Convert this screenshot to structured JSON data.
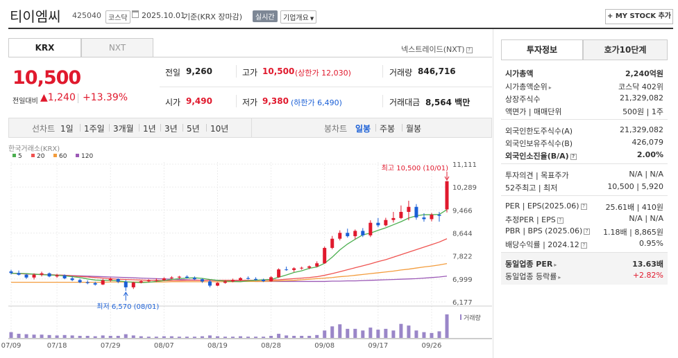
{
  "header": {
    "company_name": "티이엠씨",
    "code": "425040",
    "market_badge": "코스닥",
    "date": "2025.10.01",
    "basis": "기준(KRX 장마감)",
    "realtime_badge": "실시간",
    "overview_button": "기업개요",
    "mystock_button": "MY STOCK 추가"
  },
  "exchange_tabs": [
    "KRX",
    "NXT"
  ],
  "nxt_link": "넥스트레이드(NXT)",
  "price": {
    "current": "10,500",
    "change_label": "전일대비",
    "change": "1,240",
    "change_pct": "+13.39%"
  },
  "quote": {
    "prev_close_label": "전일",
    "prev_close": "9,260",
    "high_label": "고가",
    "high": "10,500",
    "upper_limit": "(상한가 12,030)",
    "volume_label": "거래량",
    "volume": "846,716",
    "open_label": "시가",
    "open": "9,490",
    "low_label": "저가",
    "low": "9,380",
    "lower_limit": "(하한가 6,490)",
    "amount_label": "거래대금",
    "amount": "8,564",
    "amount_unit": "백만"
  },
  "chart_toolbar": {
    "line_chart_label": "선차트",
    "line_periods": [
      "1일",
      "1주일",
      "3개월",
      "1년",
      "3년",
      "5년",
      "10년"
    ],
    "candle_label": "봉차트",
    "candle_periods": [
      "일봉",
      "주봉",
      "월봉"
    ],
    "active_period": "일봉"
  },
  "chart_data": {
    "type": "candlestick",
    "source_label": "한국거래소(KRX)",
    "ma_legend": [
      {
        "name": "5",
        "color": "#4caf50"
      },
      {
        "name": "20",
        "color": "#ef5350"
      },
      {
        "name": "60",
        "color": "#f39c3c"
      },
      {
        "name": "120",
        "color": "#9b59b6"
      }
    ],
    "y_ticks": [
      "11,111",
      "10,289",
      "9,466",
      "8,644",
      "7,822",
      "6,999",
      "6,177"
    ],
    "y_tick_values": [
      11111,
      10289,
      9466,
      8644,
      7822,
      6999,
      6177
    ],
    "x_ticks": [
      "07/09",
      "07/18",
      "07/29",
      "08/07",
      "08/19",
      "08/28",
      "09/08",
      "09/17",
      "09/26"
    ],
    "x_tick_index": [
      0,
      6,
      13,
      20,
      27,
      34,
      41,
      48,
      55
    ],
    "high_annotation": "최고 10,500 (10/01)",
    "low_annotation": "최저 6,570 (08/01)",
    "volume_label": "거래량",
    "ohlc": [
      [
        7270,
        7330,
        7160,
        7210
      ],
      [
        7210,
        7300,
        7120,
        7150
      ],
      [
        7150,
        7180,
        7000,
        7050
      ],
      [
        7050,
        7200,
        6980,
        7150
      ],
      [
        7150,
        7260,
        7090,
        7200
      ],
      [
        7200,
        7230,
        7060,
        7090
      ],
      [
        7090,
        7180,
        7040,
        7130
      ],
      [
        7130,
        7160,
        6990,
        7020
      ],
      [
        7020,
        7100,
        6920,
        6960
      ],
      [
        6960,
        7010,
        6850,
        6880
      ],
      [
        6880,
        6950,
        6810,
        6850
      ],
      [
        6850,
        6900,
        6760,
        6800
      ],
      [
        6800,
        7000,
        6780,
        6950
      ],
      [
        6950,
        7050,
        6900,
        7000
      ],
      [
        7000,
        7020,
        6850,
        6900
      ],
      [
        6900,
        6960,
        6570,
        6700
      ],
      [
        6700,
        6900,
        6640,
        6870
      ],
      [
        6870,
        6950,
        6840,
        6920
      ],
      [
        6920,
        6990,
        6880,
        6940
      ],
      [
        6940,
        7020,
        6890,
        6960
      ],
      [
        6960,
        7060,
        6930,
        7020
      ],
      [
        7020,
        7100,
        6990,
        7050
      ],
      [
        7050,
        7110,
        7000,
        7080
      ],
      [
        7080,
        7130,
        7020,
        7040
      ],
      [
        7040,
        7090,
        6960,
        6990
      ],
      [
        6990,
        7020,
        6860,
        6910
      ],
      [
        6910,
        6970,
        6700,
        6760
      ],
      [
        6760,
        6880,
        6740,
        6860
      ],
      [
        6860,
        6950,
        6830,
        6910
      ],
      [
        6910,
        7010,
        6880,
        6960
      ],
      [
        6960,
        7060,
        6930,
        7030
      ],
      [
        7030,
        7090,
        6980,
        7000
      ],
      [
        7000,
        7060,
        6940,
        6970
      ],
      [
        6970,
        7010,
        6890,
        6920
      ],
      [
        6920,
        7100,
        6900,
        7060
      ],
      [
        7060,
        7380,
        7040,
        7340
      ],
      [
        7340,
        7440,
        7290,
        7320
      ],
      [
        7320,
        7420,
        7250,
        7380
      ],
      [
        7380,
        7440,
        7330,
        7400
      ],
      [
        7400,
        7480,
        7350,
        7450
      ],
      [
        7450,
        7630,
        7420,
        7560
      ],
      [
        7560,
        8160,
        7540,
        8110
      ],
      [
        8110,
        8540,
        8060,
        8440
      ],
      [
        8440,
        8740,
        8380,
        8650
      ],
      [
        8650,
        8800,
        8480,
        8530
      ],
      [
        8530,
        8770,
        8420,
        8720
      ],
      [
        8720,
        8820,
        8500,
        8560
      ],
      [
        8560,
        9100,
        8500,
        9010
      ],
      [
        9010,
        9180,
        8850,
        8920
      ],
      [
        8920,
        9190,
        8880,
        9110
      ],
      [
        9110,
        9400,
        9020,
        9180
      ],
      [
        9180,
        9630,
        9140,
        9400
      ],
      [
        9400,
        9800,
        9100,
        9580
      ],
      [
        9580,
        9680,
        9120,
        9200
      ],
      [
        9200,
        9350,
        9050,
        9140
      ],
      [
        9140,
        9360,
        9060,
        9300
      ],
      [
        9300,
        9400,
        9050,
        9260
      ],
      [
        9490,
        10500,
        9380,
        10500
      ]
    ],
    "volume": [
      14,
      10,
      9,
      8,
      8,
      7,
      6,
      7,
      6,
      5,
      5,
      4,
      6,
      5,
      5,
      9,
      6,
      4,
      3,
      3,
      4,
      4,
      3,
      3,
      3,
      4,
      6,
      4,
      3,
      3,
      4,
      3,
      3,
      3,
      5,
      10,
      6,
      5,
      5,
      5,
      7,
      18,
      28,
      33,
      22,
      22,
      18,
      25,
      20,
      22,
      18,
      34,
      30,
      18,
      14,
      12,
      16,
      57
    ],
    "ma5": [
      7200,
      7200,
      7190,
      7170,
      7150,
      7140,
      7130,
      7110,
      7080,
      7050,
      7000,
      6960,
      6950,
      6950,
      6930,
      6900,
      6880,
      6870,
      6880,
      6910,
      6940,
      6980,
      7010,
      7030,
      7040,
      7020,
      6980,
      6950,
      6920,
      6910,
      6900,
      6930,
      6950,
      6970,
      6980,
      7060,
      7140,
      7230,
      7290,
      7380,
      7430,
      7560,
      7780,
      8040,
      8250,
      8420,
      8580,
      8640,
      8740,
      8830,
      8940,
      9050,
      9180,
      9260,
      9300,
      9300,
      9310,
      9480
    ],
    "ma20": [
      7200,
      7190,
      7180,
      7170,
      7160,
      7150,
      7140,
      7130,
      7110,
      7090,
      7070,
      7050,
      7030,
      7010,
      6990,
      6980,
      6970,
      6960,
      6950,
      6950,
      6940,
      6940,
      6940,
      6950,
      6950,
      6950,
      6950,
      6950,
      6950,
      6950,
      6950,
      6950,
      6950,
      6960,
      6960,
      6970,
      6990,
      7010,
      7030,
      7050,
      7080,
      7130,
      7190,
      7260,
      7330,
      7400,
      7470,
      7540,
      7620,
      7690,
      7780,
      7870,
      7960,
      8050,
      8140,
      8230,
      8320,
      8440
    ],
    "ma60": [
      6880,
      6880,
      6880,
      6880,
      6880,
      6880,
      6880,
      6880,
      6880,
      6880,
      6880,
      6880,
      6880,
      6890,
      6890,
      6890,
      6890,
      6890,
      6890,
      6890,
      6890,
      6900,
      6900,
      6900,
      6900,
      6900,
      6900,
      6900,
      6900,
      6900,
      6910,
      6910,
      6910,
      6910,
      6920,
      6930,
      6940,
      6950,
      6970,
      6990,
      7010,
      7030,
      7050,
      7080,
      7100,
      7130,
      7160,
      7190,
      7220,
      7250,
      7280,
      7320,
      7350,
      7390,
      7430,
      7460,
      7500,
      7550
    ],
    "ma120": [
      7200,
      7190,
      7180,
      7170,
      7160,
      7150,
      7140,
      7130,
      7120,
      7110,
      7100,
      7090,
      7080,
      7070,
      7060,
      7050,
      7040,
      7030,
      7020,
      7010,
      7000,
      6990,
      6980,
      6970,
      6960,
      6950,
      6950,
      6940,
      6930,
      6930,
      6920,
      6920,
      6910,
      6910,
      6910,
      6910,
      6910,
      6910,
      6910,
      6910,
      6910,
      6910,
      6920,
      6920,
      6930,
      6930,
      6940,
      6950,
      6960,
      6970,
      6980,
      6990,
      7000,
      7010,
      7030,
      7050,
      7070,
      7100
    ]
  },
  "right_panel": {
    "tabs": [
      "투자정보",
      "호가10단계"
    ],
    "section1": [
      {
        "label": "시가총액",
        "value": "2,240억원",
        "bold": true
      },
      {
        "label": "시가총액순위",
        "value": "코스닥 402위",
        "arrow": true
      },
      {
        "label": "상장주식수",
        "value": "21,329,082"
      },
      {
        "label": "액면가 | 매매단위",
        "value": "500원 | 1주"
      }
    ],
    "section2": [
      {
        "label": "외국인한도주식수(A)",
        "value": "21,329,082"
      },
      {
        "label": "외국인보유주식수(B)",
        "value": "426,079"
      },
      {
        "label": "외국인소진율(B/A)",
        "value": "2.00%",
        "bold": true,
        "help": true
      }
    ],
    "section3": [
      {
        "label": "투자의견 | 목표주가",
        "value": "N/A | N/A"
      },
      {
        "label": "52주최고 | 최저",
        "value": "10,500 | 5,920"
      }
    ],
    "section4": [
      {
        "label": "PER | EPS(2025.06)",
        "value": "25.61배 | 410원",
        "help": true
      },
      {
        "label": "추정PER | EPS",
        "value": "N/A | N/A",
        "help": true
      },
      {
        "label": "PBR | BPS (2025.06)",
        "value": "1.18배 | 8,865원",
        "help": true
      },
      {
        "label": "배당수익률 | 2024.12",
        "value": "0.95%",
        "help": true
      }
    ],
    "section5": [
      {
        "label": "동일업종 PER",
        "value": "13.63배",
        "bold": true,
        "arrow": true
      },
      {
        "label": "동일업종 등락률",
        "value": "+2.82%",
        "red": true,
        "arrow": true
      }
    ]
  },
  "colors": {
    "up": "#e0192d",
    "down": "#1a5fd6",
    "accent": "#e0192d"
  }
}
